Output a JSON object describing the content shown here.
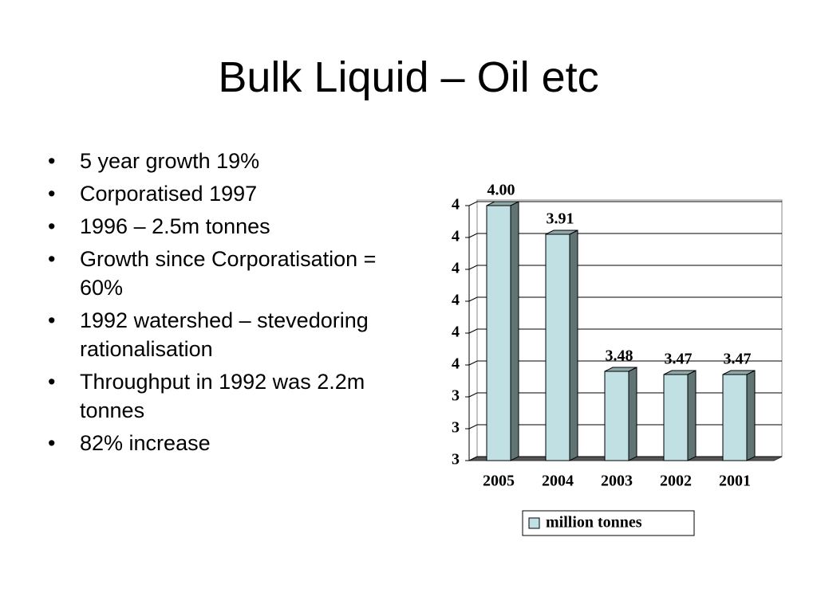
{
  "title": "Bulk Liquid – Oil etc",
  "bullets": [
    "5 year growth 19%",
    "Corporatised 1997",
    "1996 – 2.5m tonnes",
    "Growth since Corporatisation = 60%",
    "1992 watershed – stevedoring rationalisation",
    "Throughput in 1992 was 2.2m tonnes",
    "82% increase"
  ],
  "chart_data": {
    "type": "bar",
    "categories": [
      "2005",
      "2004",
      "2003",
      "2002",
      "2001"
    ],
    "series": [
      {
        "name": "million tonnes",
        "color": "#c0e0e4",
        "values": [
          4.0,
          3.91,
          3.48,
          3.47,
          3.47
        ],
        "value_labels": [
          "4.00",
          "3.91",
          "3.48",
          "3.47",
          "3.47"
        ]
      }
    ],
    "ylim": [
      3.2,
      4.0
    ],
    "yticks": [
      {
        "value": 3.2,
        "label": "3"
      },
      {
        "value": 3.3,
        "label": "3"
      },
      {
        "value": 3.4,
        "label": "3"
      },
      {
        "value": 3.5,
        "label": "4"
      },
      {
        "value": 3.6,
        "label": "4"
      },
      {
        "value": 3.7,
        "label": "4"
      },
      {
        "value": 3.8,
        "label": "4"
      },
      {
        "value": 3.9,
        "label": "4"
      },
      4
    ],
    "grid": true,
    "legend": "bottom"
  }
}
